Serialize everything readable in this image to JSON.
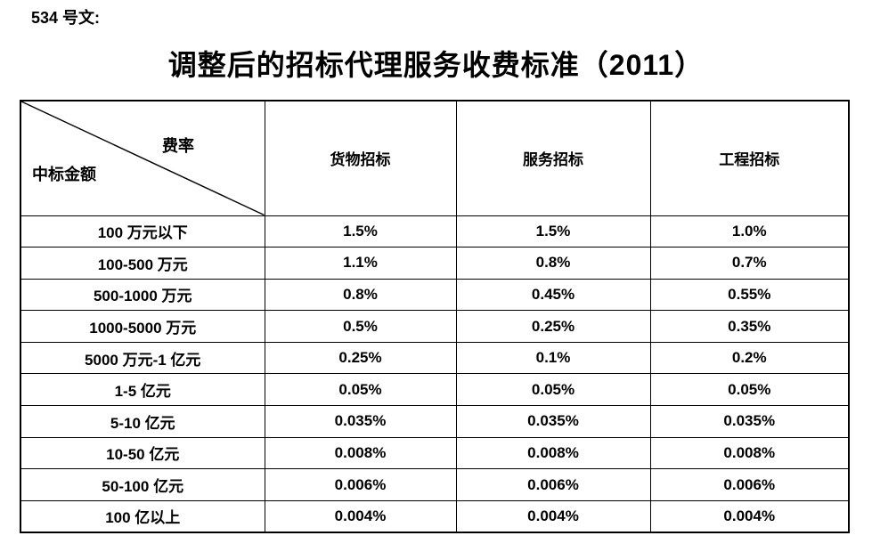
{
  "page": {
    "doc_label": "534 号文:",
    "title": "调整后的招标代理服务收费标准（2011）"
  },
  "table": {
    "corner": {
      "top_right": "费率",
      "bottom_left": "中标金额"
    },
    "columns": [
      "货物招标",
      "服务招标",
      "工程招标"
    ],
    "rows": [
      {
        "amount": "100 万元以下",
        "values": [
          "1.5%",
          "1.5%",
          "1.0%"
        ]
      },
      {
        "amount": "100-500 万元",
        "values": [
          "1.1%",
          "0.8%",
          "0.7%"
        ]
      },
      {
        "amount": "500-1000 万元",
        "values": [
          "0.8%",
          "0.45%",
          "0.55%"
        ]
      },
      {
        "amount": "1000-5000 万元",
        "values": [
          "0.5%",
          "0.25%",
          "0.35%"
        ]
      },
      {
        "amount": "5000 万元-1 亿元",
        "values": [
          "0.25%",
          "0.1%",
          "0.2%"
        ]
      },
      {
        "amount": "1-5 亿元",
        "values": [
          "0.05%",
          "0.05%",
          "0.05%"
        ]
      },
      {
        "amount": "5-10 亿元",
        "values": [
          "0.035%",
          "0.035%",
          "0.035%"
        ]
      },
      {
        "amount": "10-50 亿元",
        "values": [
          "0.008%",
          "0.008%",
          "0.008%"
        ]
      },
      {
        "amount": "50-100 亿元",
        "values": [
          "0.006%",
          "0.006%",
          "0.006%"
        ]
      },
      {
        "amount": "100 亿以上",
        "values": [
          "0.004%",
          "0.004%",
          "0.004%"
        ]
      }
    ],
    "colors": {
      "border": "#000000",
      "text": "#000000",
      "background": "#ffffff"
    }
  }
}
